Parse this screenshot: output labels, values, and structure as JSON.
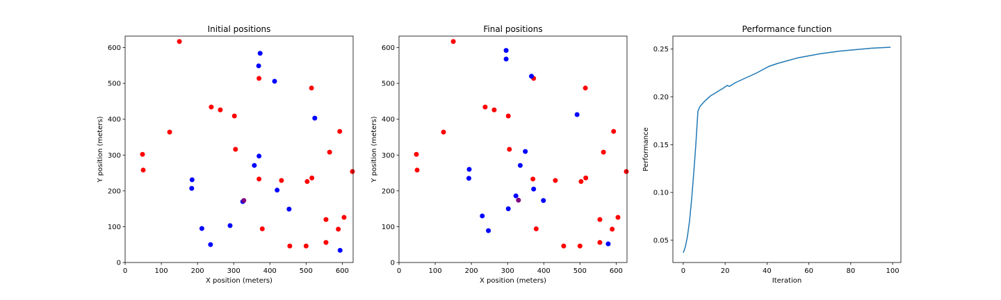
{
  "colors": {
    "red_points": "#ff0000",
    "blue_points": "#0000ff",
    "overlap_point": "#800080",
    "line": "#1f77b4",
    "axes": "#000000",
    "background": "#ffffff"
  },
  "chart_data": [
    {
      "type": "scatter",
      "title": "Initial positions",
      "xlabel": "X position (meters)",
      "ylabel": "Y position (meters)",
      "xlim": [
        0,
        630
      ],
      "ylim": [
        0,
        632
      ],
      "xticks": [
        0,
        100,
        200,
        300,
        400,
        500,
        600
      ],
      "yticks": [
        0,
        100,
        200,
        300,
        400,
        500,
        600
      ],
      "grid": false,
      "legend": "none",
      "series": [
        {
          "color": "red",
          "points": [
            [
              150,
              617
            ],
            [
              370,
              514
            ],
            [
              515,
              487
            ],
            [
              238,
              434
            ],
            [
              263,
              426
            ],
            [
              302,
              409
            ],
            [
              123,
              364
            ],
            [
              593,
              366
            ],
            [
              48,
              302
            ],
            [
              305,
              316
            ],
            [
              565,
              308
            ],
            [
              50,
              258
            ],
            [
              628,
              254
            ],
            [
              370,
              233
            ],
            [
              432,
              229
            ],
            [
              516,
              236
            ],
            [
              503,
              226
            ],
            [
              555,
              120
            ],
            [
              605,
              126
            ],
            [
              589,
              93
            ],
            [
              379,
              94
            ],
            [
              455,
              46
            ],
            [
              500,
              46
            ],
            [
              555,
              56
            ]
          ]
        },
        {
          "color": "blue",
          "points": [
            [
              373,
              584
            ],
            [
              369,
              549
            ],
            [
              413,
              506
            ],
            [
              524,
              403
            ],
            [
              370,
              297
            ],
            [
              357,
              271
            ],
            [
              185,
              231
            ],
            [
              184,
              207
            ],
            [
              420,
              202
            ],
            [
              325,
              170
            ],
            [
              453,
              149
            ],
            [
              212,
              95
            ],
            [
              290,
              103
            ],
            [
              236,
              50
            ],
            [
              594,
              34
            ]
          ]
        },
        {
          "color": "purple",
          "points": [
            [
              328,
              173
            ]
          ]
        }
      ]
    },
    {
      "type": "scatter",
      "title": "Final positions",
      "xlabel": "X position (meters)",
      "ylabel": "Y position (meters)",
      "xlim": [
        0,
        630
      ],
      "ylim": [
        0,
        632
      ],
      "xticks": [
        0,
        100,
        200,
        300,
        400,
        500,
        600
      ],
      "yticks": [
        0,
        100,
        200,
        300,
        400,
        500,
        600
      ],
      "grid": false,
      "legend": "none",
      "series": [
        {
          "color": "red",
          "points": [
            [
              150,
              617
            ],
            [
              372,
              514
            ],
            [
              515,
              487
            ],
            [
              238,
              434
            ],
            [
              263,
              426
            ],
            [
              302,
              409
            ],
            [
              123,
              364
            ],
            [
              593,
              366
            ],
            [
              48,
              302
            ],
            [
              305,
              316
            ],
            [
              565,
              308
            ],
            [
              50,
              258
            ],
            [
              628,
              254
            ],
            [
              370,
              233
            ],
            [
              432,
              229
            ],
            [
              516,
              236
            ],
            [
              503,
              226
            ],
            [
              555,
              120
            ],
            [
              605,
              126
            ],
            [
              589,
              93
            ],
            [
              379,
              94
            ],
            [
              455,
              46
            ],
            [
              500,
              46
            ],
            [
              555,
              56
            ]
          ]
        },
        {
          "color": "blue",
          "points": [
            [
              296,
              592
            ],
            [
              296,
              568
            ],
            [
              366,
              520
            ],
            [
              492,
              413
            ],
            [
              349,
              310
            ],
            [
              335,
              271
            ],
            [
              194,
              260
            ],
            [
              193,
              235
            ],
            [
              372,
              205
            ],
            [
              323,
              186
            ],
            [
              399,
              173
            ],
            [
              302,
              150
            ],
            [
              230,
              130
            ],
            [
              247,
              89
            ],
            [
              578,
              52
            ]
          ]
        },
        {
          "color": "purple",
          "points": [
            [
              330,
              174
            ]
          ]
        }
      ]
    },
    {
      "type": "line",
      "title": "Performance function",
      "xlabel": "Iteration",
      "ylabel": "Performance",
      "xlim": [
        -4.95,
        103.95
      ],
      "ylim": [
        0.0267,
        0.2636
      ],
      "xticks": [
        0,
        20,
        40,
        60,
        80,
        100
      ],
      "yticks": [
        0.05,
        0.1,
        0.15,
        0.2,
        0.25
      ],
      "ytick_labels": [
        "0.05",
        "0.10",
        "0.15",
        "0.20",
        "0.25"
      ],
      "grid": false,
      "legend": "none",
      "series": [
        {
          "color": "#1f77b4",
          "x": [
            0,
            1,
            2,
            3,
            4,
            5,
            6,
            7,
            8,
            10,
            13,
            16,
            19,
            21,
            22,
            25,
            30,
            35,
            41,
            45,
            50,
            55,
            60,
            65,
            70,
            75,
            80,
            85,
            90,
            95,
            99
          ],
          "y": [
            0.037,
            0.043,
            0.054,
            0.07,
            0.093,
            0.12,
            0.15,
            0.185,
            0.19,
            0.195,
            0.201,
            0.205,
            0.209,
            0.212,
            0.211,
            0.215,
            0.22,
            0.225,
            0.232,
            0.235,
            0.238,
            0.241,
            0.243,
            0.245,
            0.2465,
            0.248,
            0.249,
            0.25,
            0.251,
            0.2515,
            0.252
          ]
        }
      ]
    }
  ]
}
